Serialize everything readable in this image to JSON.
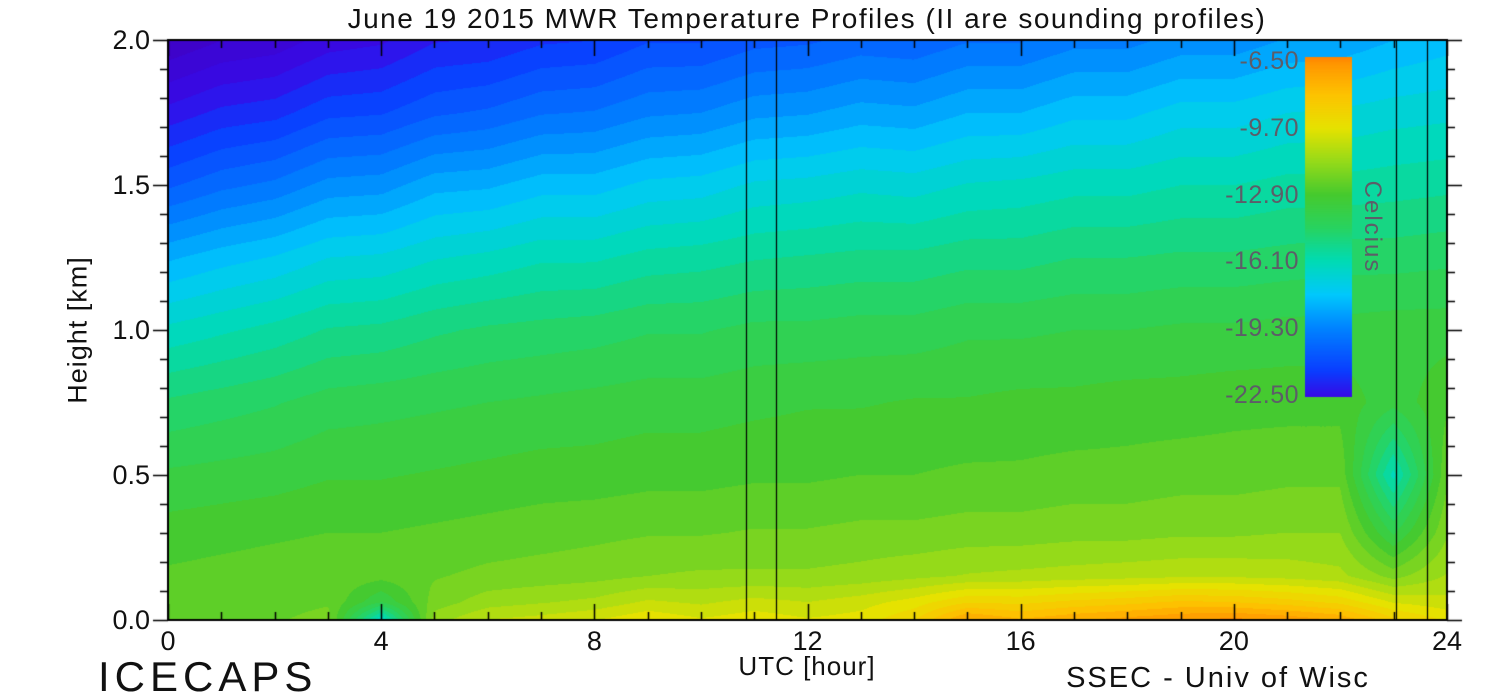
{
  "chart_data": {
    "type": "heatmap",
    "title": "June 19 2015 MWR Temperature Profiles (II are sounding profiles)",
    "xlabel": "UTC [hour]",
    "ylabel": "Height [km]",
    "x_range": [
      0,
      24
    ],
    "y_range": [
      0.0,
      2.0
    ],
    "x_ticks": {
      "values": [
        0,
        4,
        8,
        12,
        16,
        20,
        24
      ],
      "labels": [
        "0",
        "4",
        "8",
        "12",
        "16",
        "20",
        "24"
      ]
    },
    "x_minor_step": 1,
    "y_ticks": {
      "values": [
        2.0,
        1.5,
        1.0,
        0.5,
        0.0
      ],
      "labels": [
        "2.0",
        "1.5",
        "1.0",
        "0.5",
        "0.0"
      ]
    },
    "y_minor_step": 0.1,
    "grid_lines": "off",
    "legend_position": "colorbar-right-inset",
    "contour_step": 0.55,
    "sounding_lines_hours": [
      10.85,
      11.41,
      23.04,
      23.62
    ],
    "colorbar": {
      "label": "Celcius",
      "range": [
        -22.6,
        -6.3
      ],
      "tick_values": [
        -6.5,
        -9.7,
        -12.9,
        -16.1,
        -19.3,
        -22.5
      ],
      "tick_labels": [
        "-6.50",
        "-9.70",
        "-12.90",
        "-16.10",
        "-19.30",
        "-22.50"
      ]
    },
    "colormap_stops": [
      {
        "t": -24.5,
        "hex": "#4000c0",
        "rgb": [
          64,
          0,
          192
        ]
      },
      {
        "t": -22.6,
        "hex": "#370ae6",
        "rgb": [
          55,
          10,
          230
        ]
      },
      {
        "t": -21.4,
        "hex": "#0a3cff",
        "rgb": [
          10,
          60,
          255
        ]
      },
      {
        "t": -19.3,
        "hex": "#0084ff",
        "rgb": [
          0,
          132,
          255
        ]
      },
      {
        "t": -17.7,
        "hex": "#00c8fc",
        "rgb": [
          0,
          200,
          252
        ]
      },
      {
        "t": -16.1,
        "hex": "#00dbb4",
        "rgb": [
          0,
          219,
          180
        ]
      },
      {
        "t": -14.5,
        "hex": "#28d360",
        "rgb": [
          40,
          211,
          96
        ]
      },
      {
        "t": -12.9,
        "hex": "#46ca2e",
        "rgb": [
          70,
          202,
          46
        ]
      },
      {
        "t": -11.3,
        "hex": "#96da19",
        "rgb": [
          150,
          218,
          25
        ]
      },
      {
        "t": -9.7,
        "hex": "#e6e200",
        "rgb": [
          230,
          226,
          0
        ]
      },
      {
        "t": -8.1,
        "hex": "#fdc300",
        "rgb": [
          253,
          195,
          0
        ]
      },
      {
        "t": -6.6,
        "hex": "#ff9600",
        "rgb": [
          255,
          150,
          0
        ]
      },
      {
        "t": -5.8,
        "hex": "#ff6400",
        "rgb": [
          255,
          100,
          0
        ]
      }
    ],
    "grid": {
      "hours": [
        0,
        1,
        2,
        3,
        4,
        5,
        6,
        7,
        8,
        9,
        10,
        11,
        12,
        13,
        14,
        15,
        16,
        17,
        18,
        19,
        20,
        21,
        22,
        23,
        24
      ],
      "heights_km": [
        2.0,
        1.75,
        1.5,
        1.25,
        1.0,
        0.75,
        0.5,
        0.3,
        0.15,
        0.06,
        0.0
      ],
      "temps_c": [
        [
          -24.2,
          -23.7,
          -23.5,
          -22.9,
          -22.7,
          -22.1,
          -22.0,
          -21.6,
          -21.5,
          -21.0,
          -21.0,
          -20.6,
          -20.5,
          -20.2,
          -20.3,
          -19.9,
          -19.9,
          -19.5,
          -19.5,
          -19.1,
          -19.1,
          -18.7,
          -18.6,
          -18.2,
          -17.9
        ],
        [
          -22.4,
          -21.9,
          -21.7,
          -21.1,
          -21.0,
          -20.5,
          -20.3,
          -19.9,
          -19.8,
          -19.4,
          -19.3,
          -18.9,
          -18.8,
          -18.5,
          -18.6,
          -18.2,
          -18.2,
          -17.8,
          -17.8,
          -17.4,
          -17.4,
          -17.1,
          -17.0,
          -16.8,
          -16.7
        ],
        [
          -20.5,
          -20.0,
          -19.7,
          -19.1,
          -19.0,
          -18.4,
          -18.3,
          -17.9,
          -17.9,
          -17.5,
          -17.4,
          -17.0,
          -16.9,
          -16.7,
          -16.8,
          -16.5,
          -16.4,
          -16.2,
          -16.2,
          -16.0,
          -16.0,
          -15.8,
          -15.8,
          -15.7,
          -15.6
        ],
        [
          -18.3,
          -17.9,
          -17.6,
          -17.1,
          -17.0,
          -16.6,
          -16.4,
          -16.1,
          -16.1,
          -15.8,
          -15.7,
          -15.5,
          -15.4,
          -15.3,
          -15.3,
          -15.1,
          -15.1,
          -14.9,
          -14.9,
          -14.8,
          -14.8,
          -14.7,
          -14.6,
          -14.6,
          -14.5
        ],
        [
          -16.4,
          -16.1,
          -15.8,
          -15.4,
          -15.3,
          -15.0,
          -14.8,
          -14.7,
          -14.6,
          -14.4,
          -14.4,
          -14.2,
          -14.2,
          -14.1,
          -14.1,
          -13.9,
          -13.9,
          -13.8,
          -13.8,
          -13.7,
          -13.7,
          -13.6,
          -13.6,
          -13.5,
          -13.5
        ],
        [
          -14.8,
          -14.6,
          -14.4,
          -14.1,
          -14.0,
          -13.9,
          -13.8,
          -13.7,
          -13.6,
          -13.5,
          -13.5,
          -13.4,
          -13.3,
          -13.3,
          -13.2,
          -13.2,
          -13.1,
          -13.1,
          -13.0,
          -13.0,
          -12.9,
          -12.9,
          -12.9,
          -13.6,
          -12.8
        ],
        [
          -13.7,
          -13.6,
          -13.5,
          -13.3,
          -13.3,
          -13.2,
          -13.1,
          -13.0,
          -13.0,
          -12.9,
          -12.9,
          -12.8,
          -12.8,
          -12.7,
          -12.7,
          -12.6,
          -12.6,
          -12.5,
          -12.5,
          -12.4,
          -12.4,
          -12.3,
          -12.3,
          -16.2,
          -12.3
        ],
        [
          -13.0,
          -12.9,
          -12.8,
          -12.7,
          -12.7,
          -12.6,
          -12.5,
          -12.4,
          -12.3,
          -12.2,
          -12.2,
          -12.1,
          -12.1,
          -12.0,
          -12.0,
          -11.9,
          -11.9,
          -11.8,
          -11.8,
          -11.7,
          -11.7,
          -11.6,
          -11.6,
          -13.9,
          -11.7
        ],
        [
          -12.6,
          -12.5,
          -12.4,
          -12.3,
          -12.5,
          -12.2,
          -12.0,
          -11.9,
          -11.8,
          -11.6,
          -11.5,
          -11.5,
          -11.5,
          -11.4,
          -11.2,
          -11.0,
          -10.9,
          -10.8,
          -10.7,
          -10.6,
          -10.6,
          -10.7,
          -10.9,
          -11.8,
          -11.0
        ],
        [
          -12.4,
          -12.4,
          -12.3,
          -12.2,
          -13.8,
          -11.9,
          -11.3,
          -11.1,
          -10.9,
          -10.4,
          -10.6,
          -10.3,
          -10.5,
          -10.2,
          -9.7,
          -8.9,
          -9.0,
          -8.7,
          -8.5,
          -8.2,
          -8.3,
          -8.6,
          -9.0,
          -10.0,
          -10.3
        ],
        [
          -12.3,
          -12.3,
          -12.2,
          -12.0,
          -16.6,
          -11.3,
          -10.5,
          -10.3,
          -10.0,
          -9.5,
          -9.9,
          -9.6,
          -9.9,
          -9.7,
          -8.9,
          -7.1,
          -7.7,
          -7.3,
          -7.0,
          -6.7,
          -6.5,
          -6.8,
          -7.3,
          -8.7,
          -9.5
        ]
      ]
    }
  },
  "annotations": {
    "bottom_left": "ICECAPS",
    "bottom_right": "SSEC - Univ of Wisc"
  }
}
